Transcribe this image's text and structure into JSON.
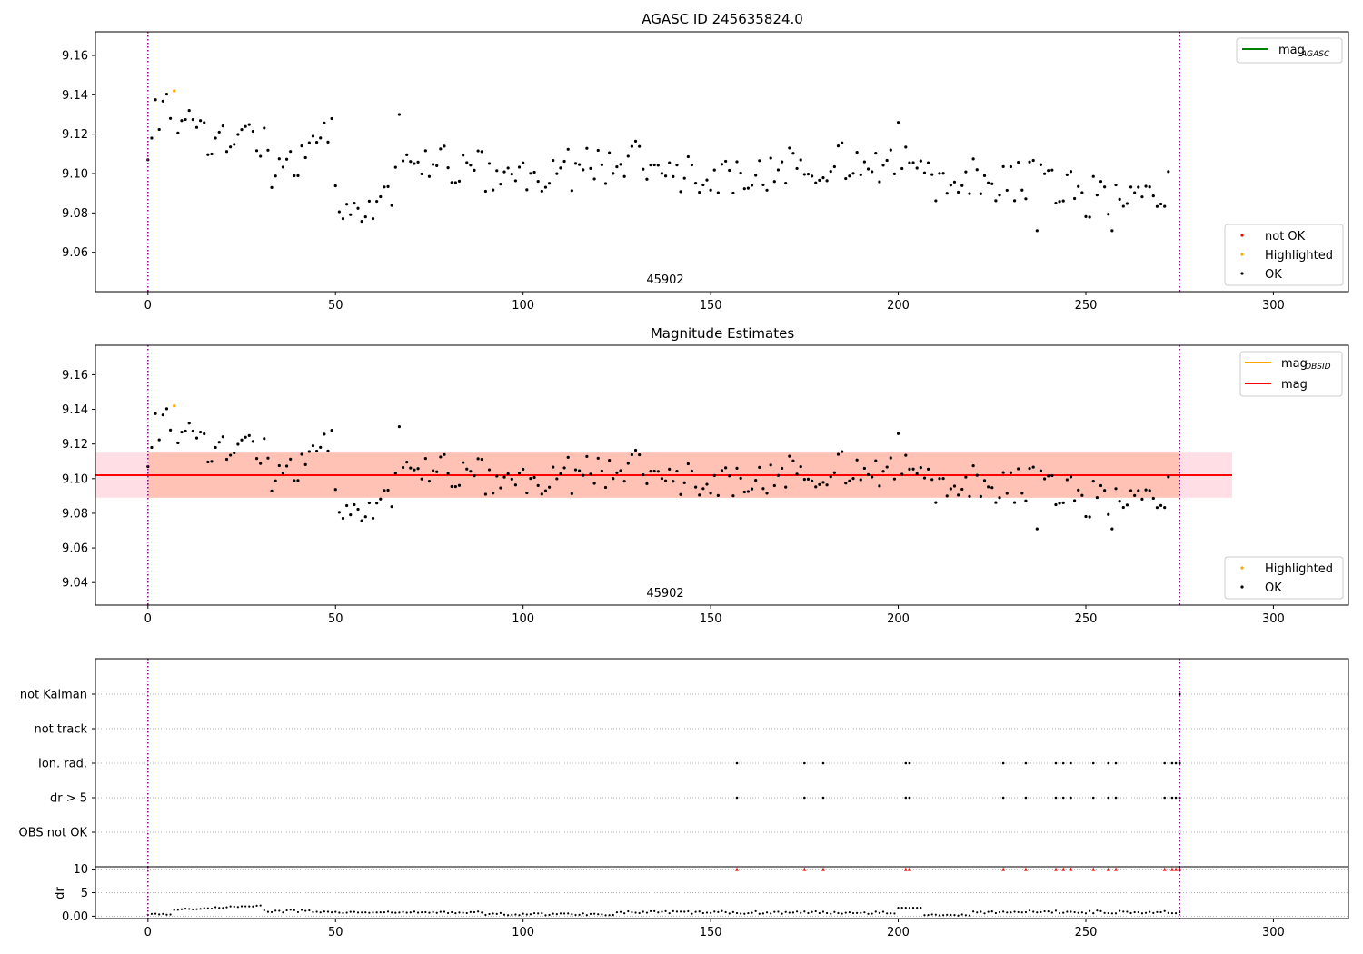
{
  "chart_data": [
    {
      "type": "scatter",
      "title": "AGASC ID 245635824.0",
      "obsid_annotation": "45902",
      "xlim": [
        -14,
        320
      ],
      "ylim": [
        9.04,
        9.172
      ],
      "x_ticks": [
        0,
        50,
        100,
        150,
        200,
        250,
        300
      ],
      "y_ticks": [
        9.06,
        9.08,
        9.1,
        9.12,
        9.14,
        9.16
      ],
      "vertical_lines": [
        0,
        275
      ],
      "legend_lines": [
        {
          "label_main": "mag",
          "label_sub": "AGASC",
          "color": "#008000"
        }
      ],
      "legend_markers": [
        {
          "label": "not OK",
          "color": "#ff0000"
        },
        {
          "label": "Highlighted",
          "color": "#ffa500"
        },
        {
          "label": "OK",
          "color": "#000000"
        }
      ],
      "highlighted": [
        {
          "x": 7,
          "y": 9.142
        }
      ],
      "grid": false
    },
    {
      "type": "scatter",
      "title": "Magnitude Estimates",
      "obsid_annotation": "45902",
      "xlim": [
        -14,
        320
      ],
      "ylim": [
        9.027,
        9.177
      ],
      "x_ticks": [
        0,
        50,
        100,
        150,
        200,
        250,
        300
      ],
      "y_ticks": [
        9.04,
        9.06,
        9.08,
        9.1,
        9.12,
        9.14,
        9.16
      ],
      "vertical_lines": [
        0,
        275
      ],
      "mag": 9.102,
      "mag_band": [
        9.089,
        9.115
      ],
      "mag_band_extent": [
        -14,
        289
      ],
      "mag_obsid": 9.102,
      "mag_obsid_band": [
        9.089,
        9.115
      ],
      "mag_obsid_extent": [
        0,
        275
      ],
      "legend_lines": [
        {
          "label_main": "mag",
          "label_sub": "OBSID",
          "color": "#ffa500"
        },
        {
          "label_main": "mag",
          "label_sub": "",
          "color": "#ff0000"
        }
      ],
      "legend_markers": [
        {
          "label": "Highlighted",
          "color": "#ffa500"
        },
        {
          "label": "OK",
          "color": "#000000"
        }
      ],
      "highlighted": [
        {
          "x": 7,
          "y": 9.142
        }
      ],
      "grid": false
    },
    {
      "type": "scatter",
      "title": "",
      "categories": [
        "not Kalman",
        "not track",
        "Ion. rad.",
        "dr > 5",
        "OBS not OK"
      ],
      "flag_points": {
        "not Kalman": [
          275
        ],
        "not track": [],
        "Ion. rad.": [
          157,
          175,
          180,
          202,
          203,
          228,
          234,
          242,
          244,
          246,
          252,
          256,
          258,
          271,
          273,
          274,
          275
        ],
        "dr > 5": [
          157,
          175,
          180,
          202,
          203,
          228,
          234,
          242,
          244,
          246,
          252,
          256,
          258,
          271,
          273,
          274,
          275
        ],
        "OBS not OK": []
      },
      "xlim": [
        -14,
        320
      ],
      "x_ticks": [
        0,
        50,
        100,
        150,
        200,
        250,
        300
      ],
      "vertical_lines": [
        0,
        275
      ],
      "grid": true
    },
    {
      "type": "scatter",
      "ylabel": "dr",
      "xlim": [
        -14,
        320
      ],
      "ylim": [
        -0.5,
        10.5
      ],
      "y_ticks": [
        0,
        5,
        10
      ],
      "x_ticks": [
        0,
        50,
        100,
        150,
        200,
        250,
        300
      ],
      "clipped_value": 10,
      "clipped_x": [
        157,
        175,
        180,
        202,
        203,
        228,
        234,
        242,
        244,
        246,
        252,
        256,
        258,
        271,
        273,
        274,
        275
      ],
      "vertical_lines": [
        0,
        275
      ],
      "grid": true
    }
  ],
  "colors": {
    "ok": "#000000",
    "not_ok": "#ff0000",
    "highlighted": "#ffa500",
    "agasc_line": "#008000",
    "vline": "#800080",
    "band_mag": "#ffc0cb",
    "band_obsid": "#ffa07a"
  }
}
